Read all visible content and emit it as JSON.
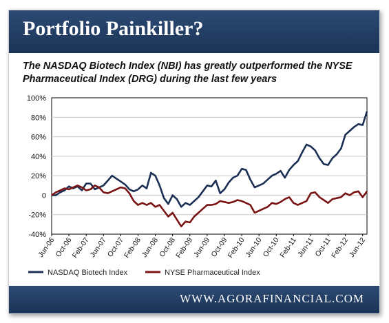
{
  "banner": {
    "title": "Portfolio Painkiller?"
  },
  "subtitle": "The NASDAQ Biotech Index (NBI) has greatly outperformed the NYSE Pharmaceutical Index (DRG) during the last few years",
  "footer": {
    "website": "WWW.AGORAFINANCIAL.COM"
  },
  "colors": {
    "banner": "#1b3457",
    "nbi": "#1b2f55",
    "drg": "#7a1414"
  },
  "chart_data": {
    "type": "line",
    "title": "",
    "xlabel": "",
    "ylabel": "",
    "ylim": [
      -40,
      100
    ],
    "y_ticks": [
      "100%",
      "80%",
      "60%",
      "40%",
      "20%",
      "0",
      "-20%",
      "-40%"
    ],
    "y_tick_values": [
      100,
      80,
      60,
      40,
      20,
      0,
      -20,
      -40
    ],
    "x_ticks": [
      "Jun-06",
      "Oct-06",
      "Feb-07",
      "Jun-07",
      "Oct-07",
      "Feb-08",
      "Jun-08",
      "Oct-08",
      "Feb-09",
      "Jun-09",
      "Oct-09",
      "Feb-10",
      "Jun-10",
      "Oct-10",
      "Feb-11",
      "Jun-11",
      "Oct-11",
      "Feb-12",
      "Jun-12"
    ],
    "grid": true,
    "legend": "bottom",
    "series": [
      {
        "name": "NASDAQ Biotech Index",
        "color": "#1b2f55",
        "x": [
          "2006-06",
          "2006-07",
          "2006-08",
          "2006-09",
          "2006-10",
          "2006-11",
          "2006-12",
          "2007-01",
          "2007-02",
          "2007-03",
          "2007-04",
          "2007-05",
          "2007-06",
          "2007-07",
          "2007-08",
          "2007-09",
          "2007-10",
          "2007-11",
          "2007-12",
          "2008-01",
          "2008-02",
          "2008-03",
          "2008-04",
          "2008-05",
          "2008-06",
          "2008-07",
          "2008-08",
          "2008-09",
          "2008-10",
          "2008-11",
          "2008-12",
          "2009-01",
          "2009-02",
          "2009-03",
          "2009-04",
          "2009-05",
          "2009-06",
          "2009-07",
          "2009-08",
          "2009-09",
          "2009-10",
          "2009-11",
          "2009-12",
          "2010-01",
          "2010-02",
          "2010-03",
          "2010-04",
          "2010-05",
          "2010-06",
          "2010-07",
          "2010-08",
          "2010-09",
          "2010-10",
          "2010-11",
          "2010-12",
          "2011-01",
          "2011-02",
          "2011-03",
          "2011-04",
          "2011-05",
          "2011-06",
          "2011-07",
          "2011-08",
          "2011-09",
          "2011-10",
          "2011-11",
          "2011-12",
          "2012-01",
          "2012-02",
          "2012-03",
          "2012-04",
          "2012-05",
          "2012-06",
          "2012-07"
        ],
        "values": [
          0,
          0,
          3,
          5,
          9,
          7,
          9,
          5,
          12,
          12,
          6,
          8,
          10,
          15,
          20,
          17,
          14,
          11,
          6,
          4,
          6,
          10,
          7,
          23,
          20,
          10,
          -3,
          -9,
          0,
          -4,
          -12,
          -8,
          -10,
          -6,
          -2,
          4,
          10,
          9,
          15,
          2,
          6,
          13,
          18,
          20,
          27,
          26,
          16,
          8,
          10,
          12,
          16,
          20,
          22,
          25,
          18,
          26,
          31,
          35,
          44,
          52,
          50,
          46,
          38,
          32,
          31,
          38,
          42,
          48,
          62,
          66,
          70,
          73,
          72,
          86
        ]
      },
      {
        "name": "NYSE Pharmaceutical Index",
        "color": "#7a1414",
        "x": [
          "2006-06",
          "2006-07",
          "2006-08",
          "2006-09",
          "2006-10",
          "2006-11",
          "2006-12",
          "2007-01",
          "2007-02",
          "2007-03",
          "2007-04",
          "2007-05",
          "2007-06",
          "2007-07",
          "2007-08",
          "2007-09",
          "2007-10",
          "2007-11",
          "2007-12",
          "2008-01",
          "2008-02",
          "2008-03",
          "2008-04",
          "2008-05",
          "2008-06",
          "2008-07",
          "2008-08",
          "2008-09",
          "2008-10",
          "2008-11",
          "2008-12",
          "2009-01",
          "2009-02",
          "2009-03",
          "2009-04",
          "2009-05",
          "2009-06",
          "2009-07",
          "2009-08",
          "2009-09",
          "2009-10",
          "2009-11",
          "2009-12",
          "2010-01",
          "2010-02",
          "2010-03",
          "2010-04",
          "2010-05",
          "2010-06",
          "2010-07",
          "2010-08",
          "2010-09",
          "2010-10",
          "2010-11",
          "2010-12",
          "2011-01",
          "2011-02",
          "2011-03",
          "2011-04",
          "2011-05",
          "2011-06",
          "2011-07",
          "2011-08",
          "2011-09",
          "2011-10",
          "2011-11",
          "2011-12",
          "2012-01",
          "2012-02",
          "2012-03",
          "2012-04",
          "2012-05",
          "2012-06",
          "2012-07"
        ],
        "values": [
          0,
          3,
          5,
          7,
          6,
          8,
          10,
          8,
          5,
          6,
          10,
          8,
          3,
          2,
          4,
          6,
          8,
          7,
          2,
          -6,
          -10,
          -8,
          -10,
          -8,
          -12,
          -10,
          -16,
          -22,
          -18,
          -25,
          -32,
          -27,
          -28,
          -22,
          -18,
          -14,
          -10,
          -10,
          -9,
          -6,
          -7,
          -8,
          -7,
          -5,
          -6,
          -8,
          -10,
          -18,
          -16,
          -14,
          -12,
          -8,
          -9,
          -7,
          -4,
          -2,
          -8,
          -10,
          -8,
          -6,
          2,
          3,
          -2,
          -5,
          -8,
          -4,
          -3,
          -2,
          2,
          0,
          3,
          4,
          -2,
          4
        ]
      }
    ]
  }
}
